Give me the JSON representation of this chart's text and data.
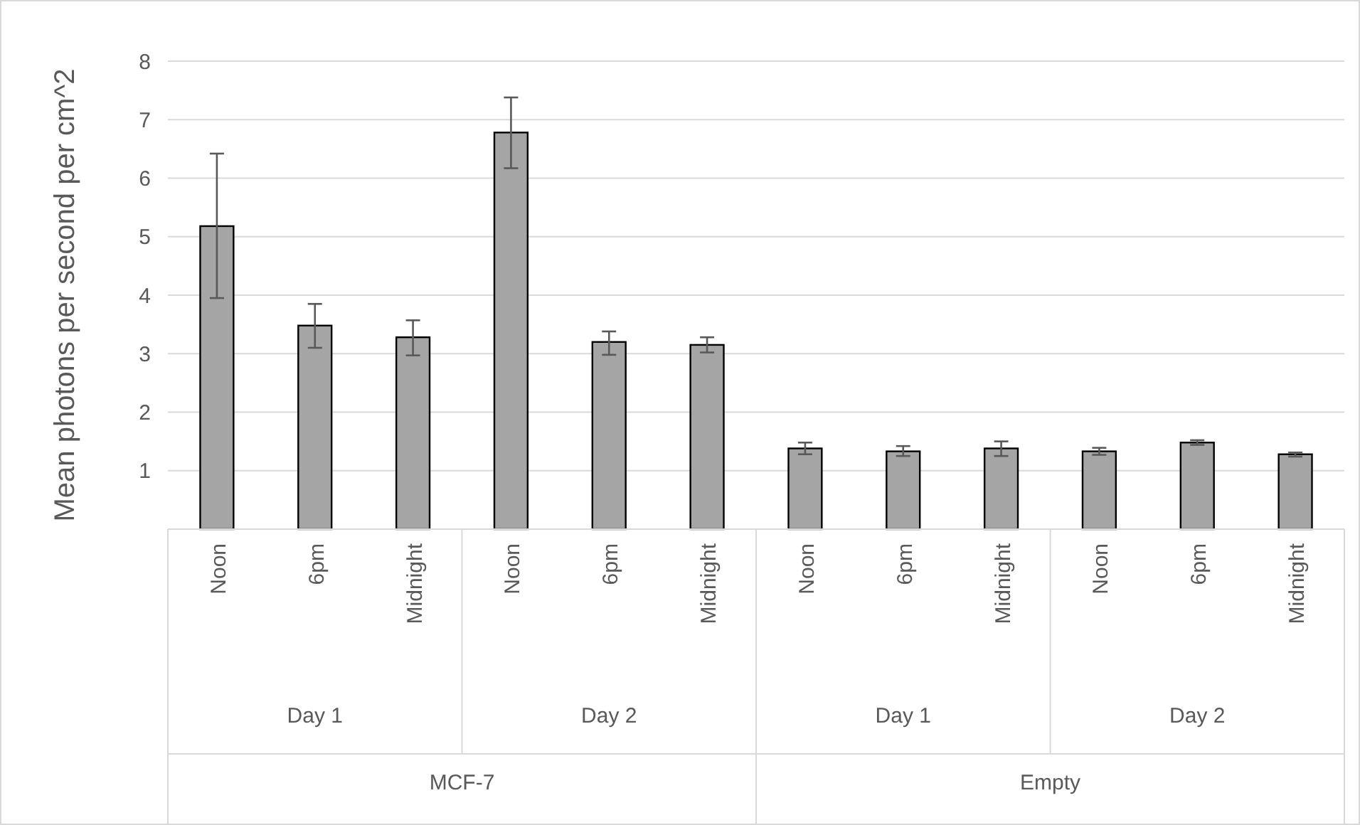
{
  "chart_data": {
    "type": "bar",
    "ylabel": "Mean photons per second per cm^2",
    "categories": [
      "Noon",
      "6pm",
      "Midnight",
      "Noon",
      "6pm",
      "Midnight",
      "Noon",
      "6pm",
      "Midnight",
      "Noon",
      "6pm",
      "Midnight"
    ],
    "values": [
      5.18,
      3.48,
      3.28,
      6.78,
      3.2,
      3.15,
      1.38,
      1.33,
      1.38,
      1.33,
      1.48,
      1.28
    ],
    "errors": [
      [
        3.95,
        6.42
      ],
      [
        3.1,
        3.85
      ],
      [
        2.97,
        3.57
      ],
      [
        6.17,
        7.38
      ],
      [
        2.98,
        3.38
      ],
      [
        3.02,
        3.28
      ],
      [
        1.28,
        1.48
      ],
      [
        1.25,
        1.42
      ],
      [
        1.25,
        1.5
      ],
      [
        1.27,
        1.39
      ],
      [
        1.44,
        1.52
      ],
      [
        1.24,
        1.31
      ]
    ],
    "color": "#a5a5a5",
    "ylim": [
      0,
      8
    ],
    "yticks": [
      {
        "value": 0,
        "label": null
      },
      1,
      2,
      3,
      4,
      5,
      6,
      7,
      8
    ],
    "grid": "y",
    "annotations": [
      "Day 1",
      "Day 2",
      "Day 1",
      "Day 2",
      "MCF-7",
      "Empty"
    ]
  }
}
